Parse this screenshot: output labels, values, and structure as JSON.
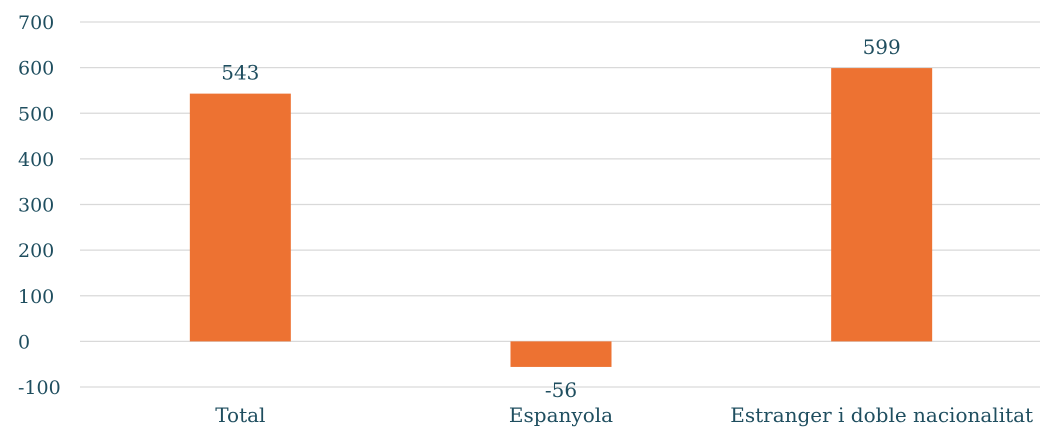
{
  "chart_data": {
    "type": "bar",
    "categories": [
      "Total",
      "Espanyola",
      "Estranger i doble nacionalitat"
    ],
    "values": [
      543,
      -56,
      599
    ],
    "data_labels": [
      "543",
      "-56",
      "599"
    ],
    "title": "",
    "xlabel": "",
    "ylabel": "",
    "ylim": [
      -100,
      700
    ],
    "yticks": [
      700,
      600,
      500,
      400,
      300,
      200,
      100,
      0,
      -100
    ],
    "grid": true,
    "legend": "none",
    "bar_color": "#ed7232",
    "text_color": "#1f4e5f"
  }
}
